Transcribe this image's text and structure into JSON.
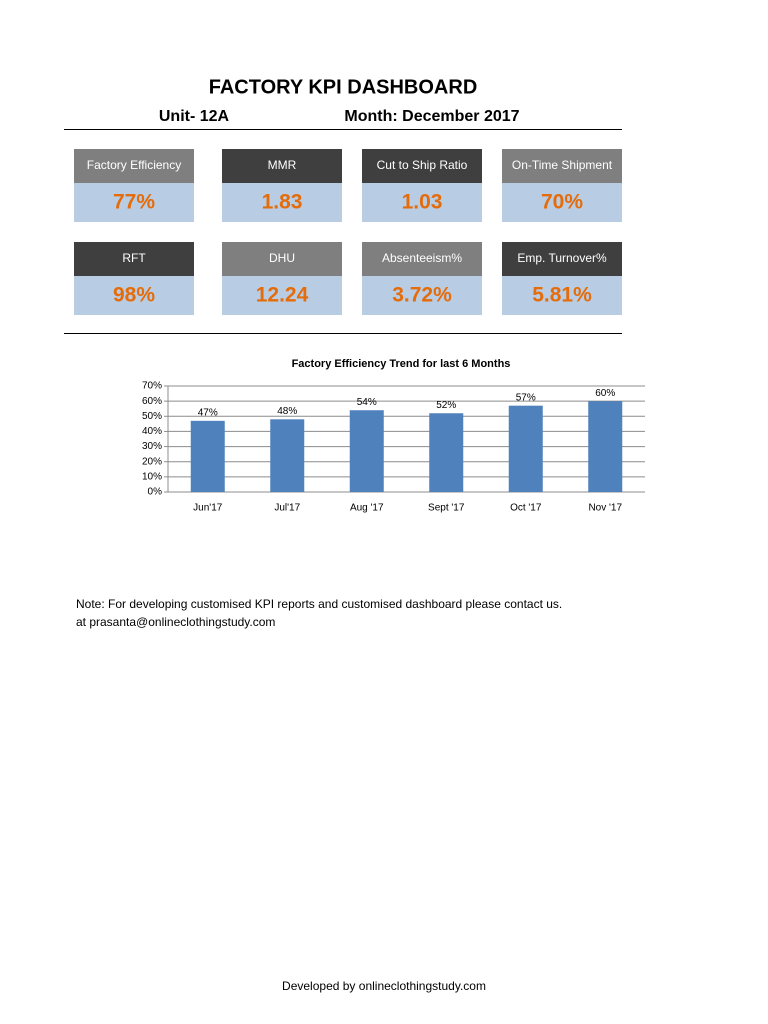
{
  "header": {
    "title": "FACTORY KPI DASHBOARD",
    "unit": "Unit- 12A",
    "month": "Month: December 2017"
  },
  "kpis": [
    {
      "label": "Factory Efficiency",
      "value": "77%"
    },
    {
      "label": "MMR",
      "value": "1.83"
    },
    {
      "label": "Cut to Ship Ratio",
      "value": "1.03"
    },
    {
      "label": "On-Time Shipment",
      "value": "70%"
    },
    {
      "label": "RFT",
      "value": "98%"
    },
    {
      "label": "DHU",
      "value": "12.24"
    },
    {
      "label": "Absenteeism%",
      "value": "3.72%"
    },
    {
      "label": "Emp. Turnover%",
      "value": "5.81%"
    }
  ],
  "chart_data": {
    "type": "bar",
    "title": "Factory Efficiency Trend for last 6 Months",
    "categories": [
      "Jun'17",
      "Jul'17",
      "Aug '17",
      "Sept '17",
      "Oct '17",
      "Nov '17"
    ],
    "values": [
      47,
      48,
      54,
      52,
      57,
      60
    ],
    "value_labels": [
      "47%",
      "48%",
      "54%",
      "52%",
      "57%",
      "60%"
    ],
    "color": "#4f81bd",
    "ylim": [
      0,
      70
    ],
    "yticks": [
      {
        "value": 0,
        "label": "0%"
      },
      {
        "value": 10,
        "label": "10%"
      },
      {
        "value": 20,
        "label": "20%"
      },
      {
        "value": 30,
        "label": "30%"
      },
      {
        "value": 40,
        "label": "40%"
      },
      {
        "value": 50,
        "label": "50%"
      },
      {
        "value": 60,
        "label": "60%"
      },
      {
        "value": 70,
        "label": "70%"
      }
    ],
    "grid": true
  },
  "note": {
    "line1": "Note: For developing customised KPI reports and customised dashboard please contact us.",
    "line2": "at prasanta@onlineclothingstudy.com"
  },
  "footer": "Developed by onlineclothingstudy.com"
}
